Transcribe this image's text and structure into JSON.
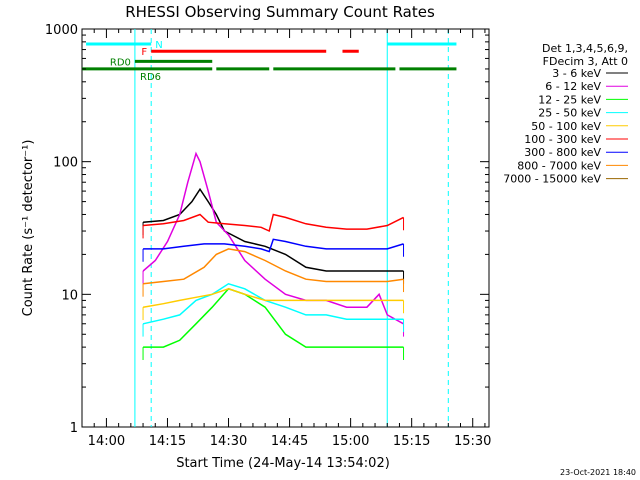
{
  "chart_data": {
    "type": "line",
    "title": "RHESSI Observing Summary Count Rates",
    "xlabel": "Start Time (24-May-14 13:54:02)",
    "ylabel": "Count Rate (s⁻¹ detector⁻¹)",
    "y_scale": "log",
    "ylim": [
      1,
      1000
    ],
    "xlim_minutes_after_1354": [
      0,
      100
    ],
    "y_ticks": [
      {
        "value": 1,
        "label": "1"
      },
      {
        "value": 10,
        "label": "10"
      },
      {
        "value": 100,
        "label": "100"
      },
      {
        "value": 1000,
        "label": "1000"
      }
    ],
    "x_ticks": [
      {
        "value": 6,
        "label": "14:00"
      },
      {
        "value": 21,
        "label": "14:15"
      },
      {
        "value": 36,
        "label": "14:30"
      },
      {
        "value": 51,
        "label": "14:45"
      },
      {
        "value": 66,
        "label": "15:00"
      },
      {
        "value": 81,
        "label": "15:15"
      },
      {
        "value": 96,
        "label": "15:30"
      }
    ],
    "legend_header": [
      "Det 1,3,4,5,6,9,",
      "FDecim 3, Att 0"
    ],
    "series": [
      {
        "name": "3 - 6 keV",
        "color": "#000000",
        "points": [
          [
            15,
            35
          ],
          [
            20,
            36
          ],
          [
            24,
            40
          ],
          [
            27,
            50
          ],
          [
            29,
            62
          ],
          [
            31,
            50
          ],
          [
            33,
            40
          ],
          [
            35,
            30
          ],
          [
            40,
            25
          ],
          [
            45,
            23
          ],
          [
            50,
            20
          ],
          [
            55,
            16
          ],
          [
            60,
            15
          ],
          [
            65,
            15
          ],
          [
            70,
            15
          ],
          [
            75,
            15
          ],
          [
            79,
            15
          ]
        ]
      },
      {
        "name": "6 - 12 keV",
        "color": "#e000e0",
        "points": [
          [
            15,
            15
          ],
          [
            18,
            18
          ],
          [
            21,
            25
          ],
          [
            24,
            40
          ],
          [
            26,
            70
          ],
          [
            28,
            115
          ],
          [
            29,
            100
          ],
          [
            31,
            60
          ],
          [
            33,
            35
          ],
          [
            36,
            28
          ],
          [
            40,
            18
          ],
          [
            45,
            13
          ],
          [
            50,
            10
          ],
          [
            55,
            9
          ],
          [
            60,
            9
          ],
          [
            65,
            8
          ],
          [
            70,
            8
          ],
          [
            73,
            10
          ],
          [
            75,
            7
          ],
          [
            79,
            6
          ]
        ]
      },
      {
        "name": "12 - 25 keV",
        "color": "#00ff00",
        "points": [
          [
            15,
            4
          ],
          [
            20,
            4
          ],
          [
            24,
            4.5
          ],
          [
            28,
            6
          ],
          [
            32,
            8
          ],
          [
            36,
            11
          ],
          [
            40,
            10
          ],
          [
            45,
            8
          ],
          [
            50,
            5
          ],
          [
            55,
            4
          ],
          [
            60,
            4
          ],
          [
            65,
            4
          ],
          [
            70,
            4
          ],
          [
            75,
            4
          ],
          [
            79,
            4
          ]
        ]
      },
      {
        "name": "25 - 50 keV",
        "color": "#00ffff",
        "points": [
          [
            15,
            6
          ],
          [
            20,
            6.5
          ],
          [
            24,
            7
          ],
          [
            28,
            9
          ],
          [
            32,
            10
          ],
          [
            36,
            12
          ],
          [
            40,
            11
          ],
          [
            45,
            9
          ],
          [
            50,
            8
          ],
          [
            55,
            7
          ],
          [
            60,
            7
          ],
          [
            65,
            6.5
          ],
          [
            70,
            6.5
          ],
          [
            75,
            6.5
          ],
          [
            79,
            6.5
          ]
        ]
      },
      {
        "name": "50 - 100 keV",
        "color": "#ffcc00",
        "points": [
          [
            15,
            8
          ],
          [
            20,
            8.5
          ],
          [
            24,
            9
          ],
          [
            28,
            9.5
          ],
          [
            32,
            10
          ],
          [
            36,
            11
          ],
          [
            40,
            10
          ],
          [
            45,
            9
          ],
          [
            50,
            9
          ],
          [
            55,
            9
          ],
          [
            60,
            9
          ],
          [
            65,
            9
          ],
          [
            70,
            9
          ],
          [
            75,
            9
          ],
          [
            79,
            9
          ]
        ]
      },
      {
        "name": "100 - 300 keV",
        "color": "#ff0000",
        "points": [
          [
            15,
            33
          ],
          [
            20,
            34
          ],
          [
            25,
            36
          ],
          [
            29,
            40
          ],
          [
            31,
            35
          ],
          [
            35,
            34
          ],
          [
            40,
            33
          ],
          [
            44,
            32
          ],
          [
            46,
            30
          ],
          [
            47,
            40
          ],
          [
            50,
            38
          ],
          [
            55,
            34
          ],
          [
            60,
            32
          ],
          [
            65,
            31
          ],
          [
            70,
            31
          ],
          [
            75,
            33
          ],
          [
            79,
            38
          ]
        ]
      },
      {
        "name": "300 - 800 keV",
        "color": "#0000ff",
        "points": [
          [
            15,
            22
          ],
          [
            20,
            22
          ],
          [
            25,
            23
          ],
          [
            30,
            24
          ],
          [
            35,
            24
          ],
          [
            40,
            23
          ],
          [
            44,
            22
          ],
          [
            46,
            21
          ],
          [
            47,
            26
          ],
          [
            50,
            25
          ],
          [
            55,
            23
          ],
          [
            60,
            22
          ],
          [
            65,
            22
          ],
          [
            70,
            22
          ],
          [
            75,
            22
          ],
          [
            79,
            24
          ]
        ]
      },
      {
        "name": "800 - 7000 keV",
        "color": "#ff8800",
        "points": [
          [
            15,
            12
          ],
          [
            20,
            12.5
          ],
          [
            25,
            13
          ],
          [
            30,
            16
          ],
          [
            33,
            20
          ],
          [
            36,
            22
          ],
          [
            40,
            21
          ],
          [
            45,
            18
          ],
          [
            50,
            15
          ],
          [
            55,
            13
          ],
          [
            60,
            12.5
          ],
          [
            65,
            12.5
          ],
          [
            70,
            12.5
          ],
          [
            75,
            12.5
          ],
          [
            79,
            13
          ]
        ]
      },
      {
        "name": "7000 - 15000 keV",
        "color": "#996600",
        "points": []
      }
    ],
    "flags": [
      {
        "label": "N",
        "color": "#00ffff",
        "segments": [
          [
            1,
            17
          ],
          [
            75,
            92
          ]
        ],
        "y": 770
      },
      {
        "label": "F",
        "color": "#ff0000",
        "segments": [
          [
            17,
            60
          ],
          [
            64,
            68
          ]
        ],
        "y": 680
      },
      {
        "label": "RD0",
        "color": "#008000",
        "segments": [
          [
            13,
            32
          ]
        ],
        "y": 570
      },
      {
        "label": "RD6",
        "color": "#008000",
        "segments": [
          [
            0,
            32
          ],
          [
            33,
            46
          ],
          [
            47,
            77
          ],
          [
            78,
            92
          ]
        ],
        "y": 500
      }
    ],
    "vertical_markers": [
      {
        "x": 13,
        "color": "#00ffff",
        "style": "solid"
      },
      {
        "x": 17,
        "color": "#00ffff",
        "style": "dashed"
      },
      {
        "x": 75,
        "color": "#00ffff",
        "style": "solid"
      },
      {
        "x": 90,
        "color": "#00ffff",
        "style": "dashed"
      }
    ]
  },
  "footer": {
    "timestamp": "23-Oct-2021 18:40"
  }
}
